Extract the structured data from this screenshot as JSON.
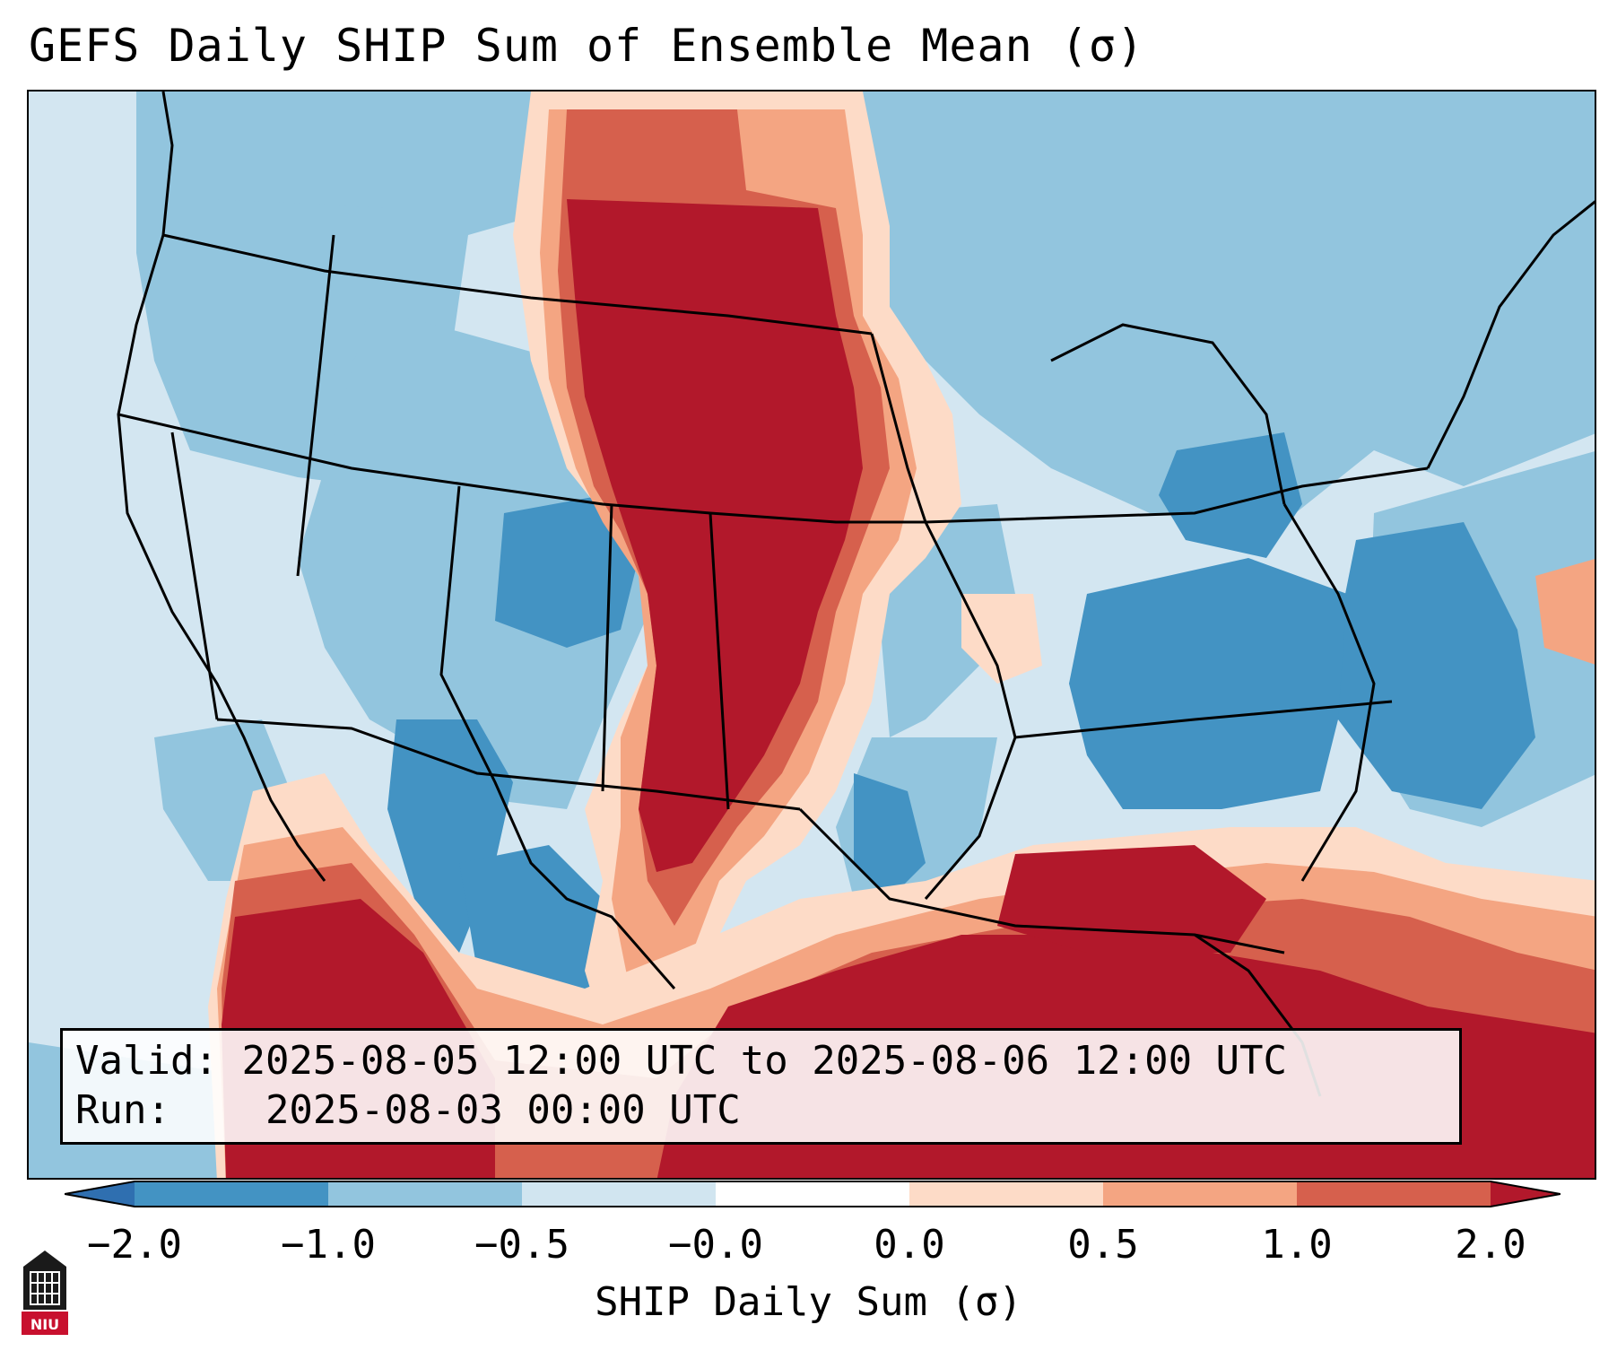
{
  "title": "GEFS Daily SHIP Sum of Ensemble Mean (σ)",
  "info": {
    "valid_label": "Valid:",
    "valid_value": "2025-08-05 12:00 UTC to 2025-08-06 12:00 UTC",
    "run_label": "Run:",
    "run_value": "2025-08-03 00:00 UTC"
  },
  "colorbar": {
    "label": "SHIP Daily Sum (σ)",
    "ticks": [
      "−2.0",
      "−1.0",
      "−0.5",
      "−0.0",
      "0.0",
      "0.5",
      "1.0",
      "2.0"
    ],
    "bins": [
      {
        "range": "< -2.0",
        "color": "#2f6fb0"
      },
      {
        "range": "-2.0 to -1.0",
        "color": "#4393c3"
      },
      {
        "range": "-1.0 to -0.5",
        "color": "#92c5de"
      },
      {
        "range": "-0.5 to -0.0",
        "color": "#d1e5f0"
      },
      {
        "range": "-0.0 to 0.0",
        "color": "#ffffff"
      },
      {
        "range": "0.0 to 0.5",
        "color": "#fddbc7"
      },
      {
        "range": "0.5 to 1.0",
        "color": "#f4a582"
      },
      {
        "range": "1.0 to 2.0",
        "color": "#d6604d"
      },
      {
        "range": "> 2.0",
        "color": "#b2182b"
      }
    ]
  },
  "logo": {
    "text": "NIU"
  },
  "colors": {
    "very_low": "#4393c3",
    "low": "#92c5de",
    "slightly_low": "#d1e5f0",
    "slightly_high": "#fddbc7",
    "high": "#f4a582",
    "higher": "#d6604d",
    "highest": "#b2182b"
  }
}
